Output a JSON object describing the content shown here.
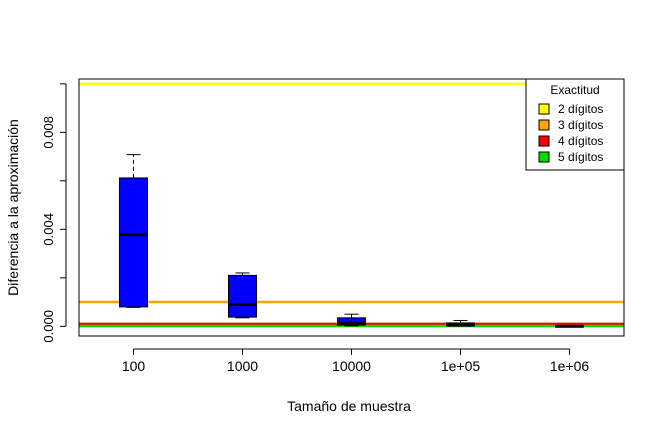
{
  "chart_data": {
    "type": "boxplot",
    "xlabel": "Tamaño de muestra",
    "ylabel": "Diferencia a la aproximación",
    "categories": [
      "100",
      "1000",
      "10000",
      "1e+05",
      "1e+06"
    ],
    "ylim": [
      -0.0004,
      0.0102
    ],
    "yticks": [
      0.0,
      0.004,
      0.008
    ],
    "ytick_labels": [
      "0.000",
      "0.004",
      "0.008"
    ],
    "box_color": "#0000ff",
    "boxes": [
      {
        "category": "100",
        "whisker_low": 0.00078,
        "q1": 0.0008,
        "median": 0.00378,
        "q3": 0.00612,
        "whisker_high": 0.00708
      },
      {
        "category": "1000",
        "whisker_low": 0.00035,
        "q1": 0.00038,
        "median": 0.0009,
        "q3": 0.0021,
        "whisker_high": 0.0022
      },
      {
        "category": "10000",
        "whisker_low": 2e-05,
        "q1": 5e-05,
        "median": 0.00012,
        "q3": 0.00035,
        "whisker_high": 0.0005
      },
      {
        "category": "1e+05",
        "whisker_low": 1e-05,
        "q1": 3e-05,
        "median": 5e-05,
        "q3": 0.00014,
        "whisker_high": 0.00024
      },
      {
        "category": "1e+06",
        "whisker_low": 0.0,
        "q1": 0.0,
        "median": 0.0,
        "q3": 1e-05,
        "whisker_high": 1e-05
      }
    ],
    "reference_lines": [
      {
        "label": "2 dígitos",
        "value": 0.01,
        "color": "#ffff00"
      },
      {
        "label": "3 dígitos",
        "value": 0.001,
        "color": "#ffa500"
      },
      {
        "label": "4 dígitos",
        "value": 0.0001,
        "color": "#ff0000"
      },
      {
        "label": "5 dígitos",
        "value": 1e-05,
        "color": "#00dd00"
      }
    ],
    "legend": {
      "title": "Exactitud",
      "position": "top-right",
      "entries": [
        "2 dígitos",
        "3 dígitos",
        "4 dígitos",
        "5 dígitos"
      ]
    }
  }
}
